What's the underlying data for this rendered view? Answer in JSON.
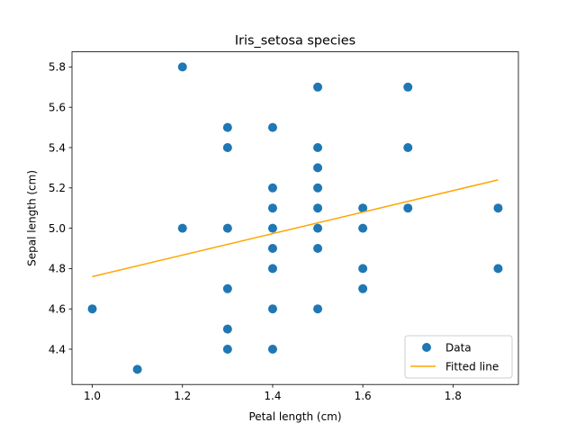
{
  "chart_data": {
    "type": "scatter",
    "title": "Iris_setosa species",
    "xlabel": "Petal length (cm)",
    "ylabel": "Sepal length (cm)",
    "xlim": [
      0.955,
      1.945
    ],
    "ylim": [
      4.225,
      5.875
    ],
    "xticks": [
      "1.0",
      "1.2",
      "1.4",
      "1.6",
      "1.8"
    ],
    "yticks": [
      "4.4",
      "4.6",
      "4.8",
      "5.0",
      "5.2",
      "5.4",
      "5.6",
      "5.8"
    ],
    "grid": false,
    "legend_position": "lower-right",
    "series": [
      {
        "name": "Data",
        "kind": "scatter",
        "color": "#1f77b4",
        "points": [
          [
            1.0,
            4.6
          ],
          [
            1.1,
            4.3
          ],
          [
            1.2,
            5.8
          ],
          [
            1.2,
            5.0
          ],
          [
            1.3,
            5.5
          ],
          [
            1.3,
            5.4
          ],
          [
            1.3,
            5.0
          ],
          [
            1.3,
            4.7
          ],
          [
            1.3,
            4.5
          ],
          [
            1.3,
            4.4
          ],
          [
            1.4,
            5.5
          ],
          [
            1.4,
            5.2
          ],
          [
            1.4,
            5.1
          ],
          [
            1.4,
            5.0
          ],
          [
            1.4,
            4.9
          ],
          [
            1.4,
            4.8
          ],
          [
            1.4,
            4.6
          ],
          [
            1.4,
            4.4
          ],
          [
            1.5,
            5.7
          ],
          [
            1.5,
            5.4
          ],
          [
            1.5,
            5.3
          ],
          [
            1.5,
            5.2
          ],
          [
            1.5,
            5.1
          ],
          [
            1.5,
            5.0
          ],
          [
            1.5,
            4.9
          ],
          [
            1.5,
            4.6
          ],
          [
            1.6,
            5.1
          ],
          [
            1.6,
            5.0
          ],
          [
            1.6,
            4.8
          ],
          [
            1.6,
            4.7
          ],
          [
            1.7,
            5.7
          ],
          [
            1.7,
            5.4
          ],
          [
            1.7,
            5.1
          ],
          [
            1.9,
            5.1
          ],
          [
            1.9,
            4.8
          ]
        ]
      },
      {
        "name": "Fitted line",
        "kind": "line",
        "color": "#ffa500",
        "points": [
          [
            1.0,
            4.76
          ],
          [
            1.9,
            5.24
          ]
        ]
      }
    ]
  }
}
